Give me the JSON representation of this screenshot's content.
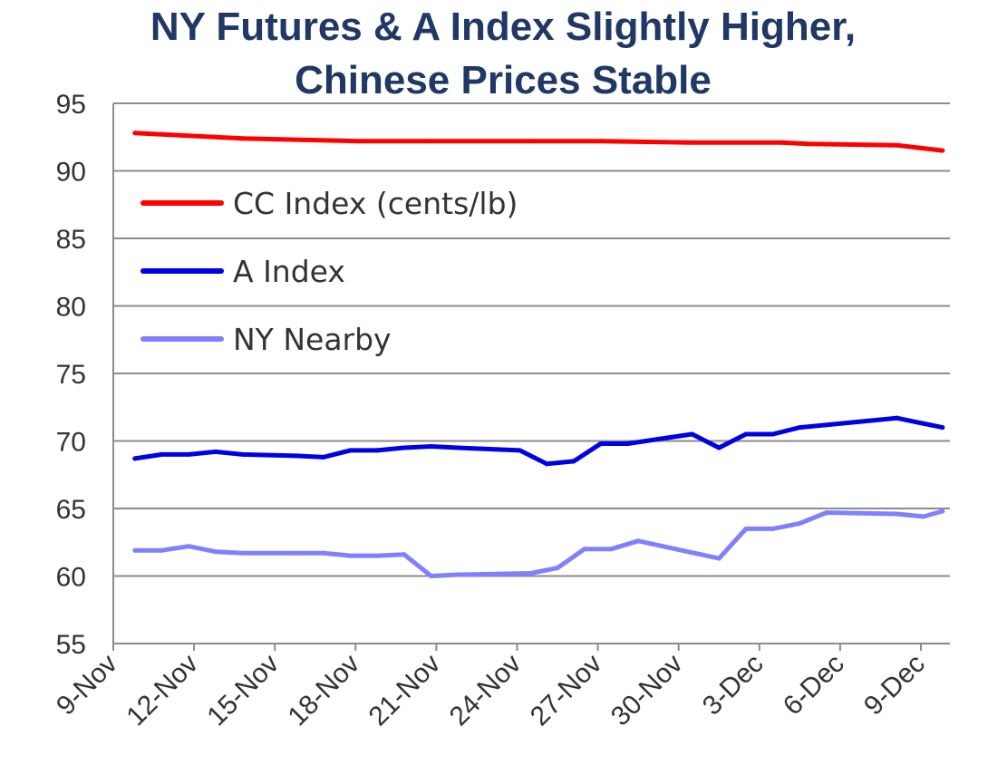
{
  "chart_data": {
    "type": "line",
    "title": [
      "NY Futures & A Index Slightly Higher,",
      "Chinese Prices Stable"
    ],
    "ylim": [
      55,
      95
    ],
    "yticks": [
      55,
      60,
      65,
      70,
      75,
      80,
      85,
      90,
      95
    ],
    "xlim": [
      0,
      31
    ],
    "xticks": [
      {
        "x": 0,
        "label": "9-Nov"
      },
      {
        "x": 3,
        "label": "12-Nov"
      },
      {
        "x": 6,
        "label": "15-Nov"
      },
      {
        "x": 9,
        "label": "18-Nov"
      },
      {
        "x": 12,
        "label": "21-Nov"
      },
      {
        "x": 15,
        "label": "24-Nov"
      },
      {
        "x": 18,
        "label": "27-Nov"
      },
      {
        "x": 21,
        "label": "30-Nov"
      },
      {
        "x": 24,
        "label": "3-Dec"
      },
      {
        "x": 27,
        "label": "6-Dec"
      },
      {
        "x": 30,
        "label": "9-Dec"
      }
    ],
    "grid": true,
    "legend": "upper-left",
    "series": [
      {
        "name": "CC Index (cents/lb)",
        "color": "#ff0000",
        "x": [
          0.5,
          4.5,
          8.8,
          11.5,
          15.2,
          17.8,
          21.2,
          24.5,
          25.5,
          28.8,
          30.5
        ],
        "y": [
          92.8,
          92.4,
          92.2,
          92.2,
          92.2,
          92.2,
          92.1,
          92.1,
          92.0,
          91.9,
          91.5
        ]
      },
      {
        "name": "A Index",
        "color": "#0000e6",
        "x": [
          0.5,
          1.5,
          2.5,
          3.5,
          4.5,
          6.5,
          7.5,
          8.5,
          9.5,
          10.5,
          11.5,
          12.5,
          14.8,
          15.8,
          16.8,
          17.8,
          18.8,
          21.2,
          22.2,
          23.2,
          24.2,
          25.2,
          27.8,
          28.8,
          30.5
        ],
        "y": [
          68.7,
          69.0,
          69.0,
          69.2,
          69.0,
          68.9,
          68.8,
          69.3,
          69.3,
          69.5,
          69.6,
          69.5,
          69.3,
          68.3,
          68.5,
          69.8,
          69.8,
          70.5,
          69.5,
          70.5,
          70.5,
          71.0,
          71.5,
          71.7,
          71.0
        ]
      },
      {
        "name": "NY Nearby",
        "color": "#8080ff",
        "x": [
          0.5,
          1.5,
          2.5,
          3.5,
          4.5,
          6.5,
          7.5,
          8.5,
          9.5,
          10.5,
          11.5,
          12.5,
          15.2,
          16.2,
          17.2,
          18.2,
          19.2,
          22.2,
          23.2,
          24.2,
          25.2,
          26.2,
          28.8,
          29.8,
          30.5
        ],
        "y": [
          61.9,
          61.9,
          62.2,
          61.8,
          61.7,
          61.7,
          61.7,
          61.5,
          61.5,
          61.6,
          60.0,
          60.1,
          60.2,
          60.6,
          62.0,
          62.0,
          62.6,
          61.3,
          63.5,
          63.5,
          63.9,
          64.7,
          64.6,
          64.4,
          64.8
        ]
      }
    ]
  }
}
